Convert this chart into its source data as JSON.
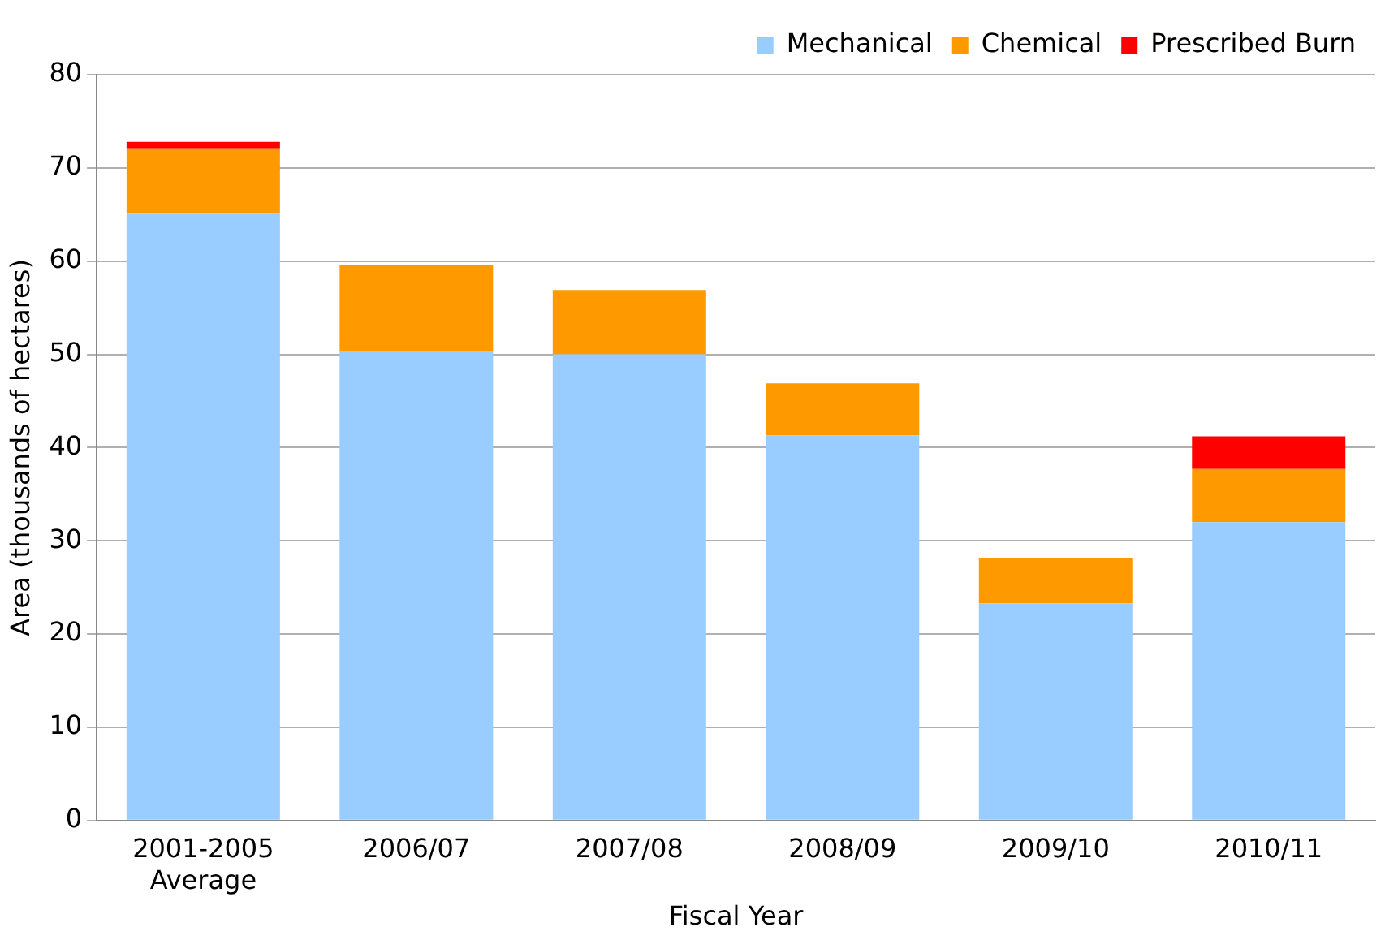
{
  "chart_data": {
    "type": "bar",
    "stacked": true,
    "xlabel": "Fiscal Year",
    "ylabel": "Area (thousands of hectares)",
    "categories": [
      "2001-2005\nAverage",
      "2006/07",
      "2007/08",
      "2008/09",
      "2009/10",
      "2010/11"
    ],
    "series": [
      {
        "name": "Mechanical",
        "color": "#99ccff",
        "values": [
          65.1,
          50.4,
          50.0,
          41.3,
          23.3,
          32.0
        ]
      },
      {
        "name": "Chemical",
        "color": "#ff9900",
        "values": [
          7.0,
          9.2,
          6.9,
          5.6,
          4.8,
          5.7
        ]
      },
      {
        "name": "Prescribed Burn",
        "color": "#ff0000",
        "values": [
          0.7,
          0,
          0,
          0,
          0,
          3.5
        ]
      }
    ],
    "ylim": [
      0,
      80
    ],
    "yticks": [
      0,
      10,
      20,
      30,
      40,
      50,
      60,
      70,
      80
    ],
    "grid": "y",
    "legend": "top right"
  }
}
